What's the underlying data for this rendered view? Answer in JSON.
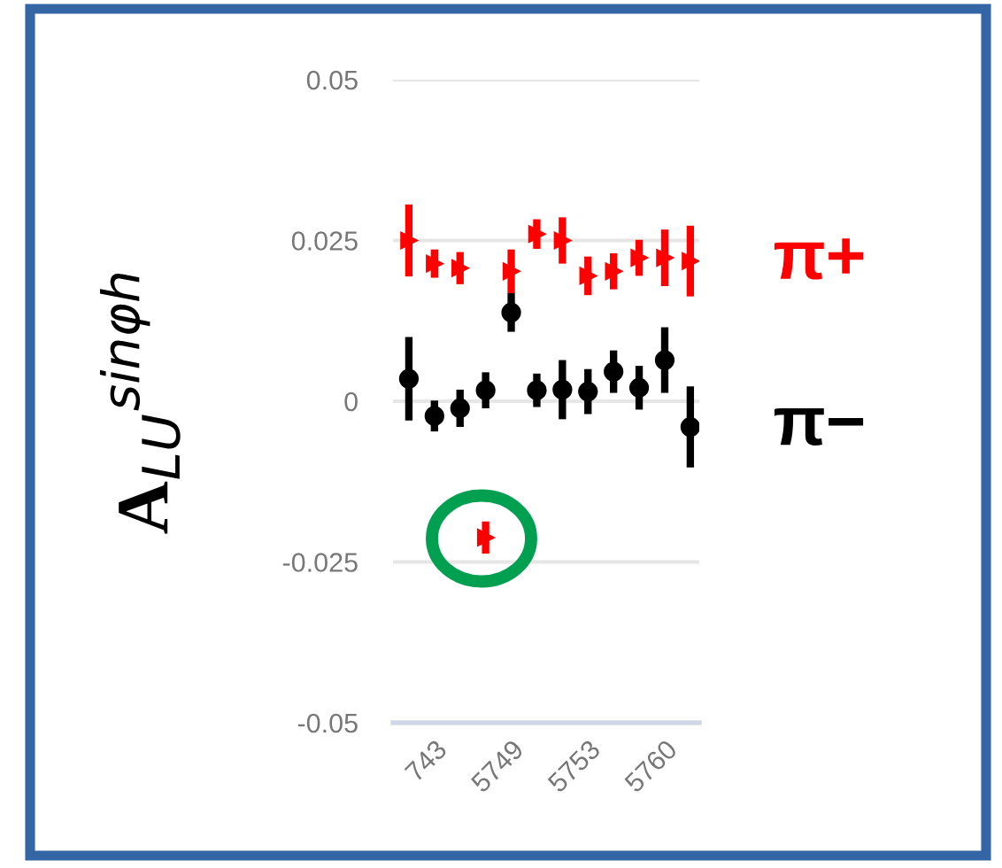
{
  "chart_data": {
    "type": "scatter",
    "ylabel": "A$_{LU}$$^{sinφh}$",
    "categories": [
      null,
      "743",
      null,
      null,
      "5749",
      null,
      null,
      "5753",
      null,
      null,
      "5760",
      null
    ],
    "series": [
      {
        "name": "π+",
        "color": "#ff0000",
        "marker": "triangle",
        "values": [
          0.025,
          0.0214,
          0.0207,
          -0.0212,
          0.0202,
          0.026,
          0.025,
          0.0195,
          0.0202,
          0.0223,
          0.0223,
          0.0218
        ],
        "errors": [
          0.0056,
          0.0022,
          0.0025,
          0.0025,
          0.0034,
          0.0023,
          0.0036,
          0.003,
          0.0028,
          0.0028,
          0.0044,
          0.0055
        ]
      },
      {
        "name": "π−",
        "color": "#000000",
        "marker": "circle",
        "values": [
          0.0035,
          -0.0023,
          -0.0011,
          0.0017,
          0.0138,
          0.0017,
          0.0018,
          0.0015,
          0.0046,
          0.0021,
          0.0064,
          -0.004
        ],
        "errors": [
          0.0065,
          0.0024,
          0.0029,
          0.0028,
          0.003,
          0.0026,
          0.0046,
          0.0035,
          0.0033,
          0.0034,
          0.0051,
          0.0063
        ]
      }
    ],
    "ylim": [
      -0.05,
      0.05
    ],
    "yticks": [
      {
        "value": -0.05,
        "label": "-0.05"
      },
      {
        "value": -0.025,
        "label": "-0.025"
      },
      0,
      0.025,
      0.05
    ],
    "grid": "y",
    "legend": "right"
  }
}
